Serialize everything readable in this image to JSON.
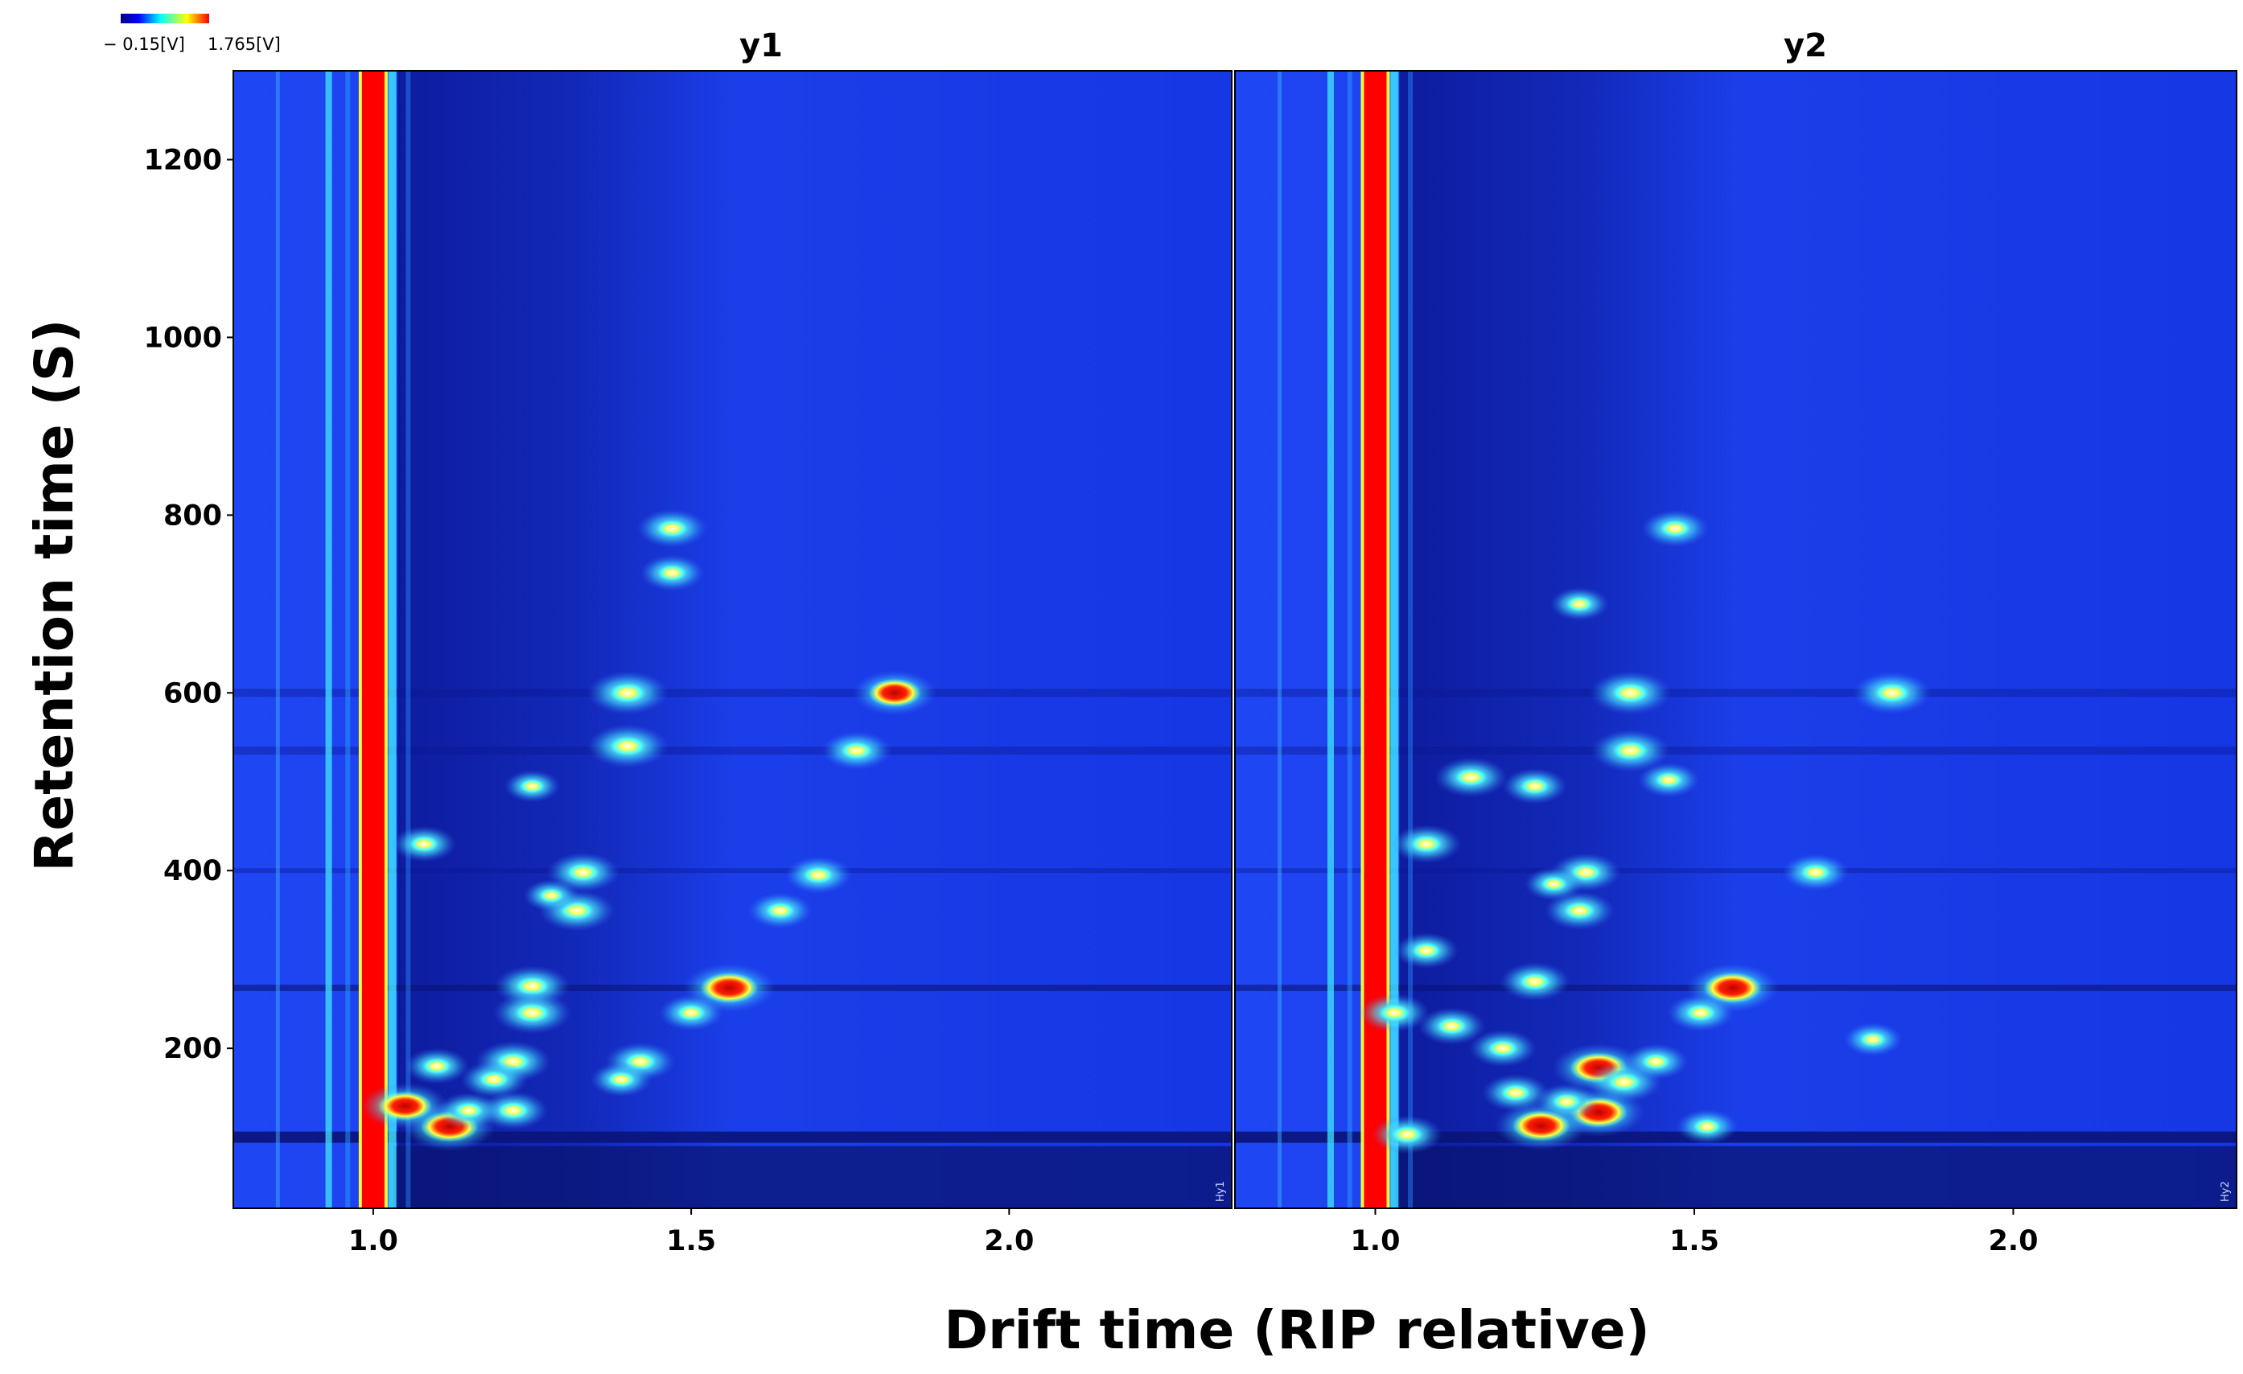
{
  "colorbar": {
    "min_label": "− 0.15[V]",
    "max_label": "1.765[V]",
    "colors": [
      "#000080",
      "#0000ff",
      "#00ffff",
      "#ffff00",
      "#ff0000"
    ]
  },
  "colors": {
    "background": "#1a3af0",
    "dark_band": "#0d1a9a",
    "rip": "#ff0000"
  },
  "chart_data": [
    {
      "type": "heatmap",
      "title": "y1",
      "xlabel": "Drift time (RIP relative)",
      "ylabel": "Retention time (S)",
      "xlim": [
        0.78,
        2.35
      ],
      "ylim": [
        20,
        1300
      ],
      "xticks": [
        1.0,
        1.5,
        2.0
      ],
      "xtick_labels": [
        "1.0",
        "1.5",
        "2.0"
      ],
      "yticks": [
        200,
        400,
        600,
        800,
        1000,
        1200
      ],
      "ytick_labels": [
        "200",
        "400",
        "600",
        "800",
        "1000",
        "1200"
      ],
      "file_tag": "Hy1",
      "rip_position": 1.0,
      "peaks": [
        {
          "x": 1.47,
          "y": 785,
          "i": 0.6
        },
        {
          "x": 1.47,
          "y": 735,
          "i": 0.5
        },
        {
          "x": 1.4,
          "y": 600,
          "i": 0.8
        },
        {
          "x": 1.4,
          "y": 540,
          "i": 0.8
        },
        {
          "x": 1.82,
          "y": 600,
          "i": 0.85
        },
        {
          "x": 1.76,
          "y": 535,
          "i": 0.6
        },
        {
          "x": 1.7,
          "y": 395,
          "i": 0.55
        },
        {
          "x": 1.64,
          "y": 355,
          "i": 0.5
        },
        {
          "x": 1.56,
          "y": 268,
          "i": 1.0
        },
        {
          "x": 1.5,
          "y": 240,
          "i": 0.5
        },
        {
          "x": 1.42,
          "y": 185,
          "i": 0.6
        },
        {
          "x": 1.39,
          "y": 165,
          "i": 0.45
        },
        {
          "x": 1.33,
          "y": 398,
          "i": 0.65
        },
        {
          "x": 1.32,
          "y": 355,
          "i": 0.7
        },
        {
          "x": 1.25,
          "y": 270,
          "i": 0.7
        },
        {
          "x": 1.25,
          "y": 240,
          "i": 0.75
        },
        {
          "x": 1.22,
          "y": 185,
          "i": 0.7
        },
        {
          "x": 1.19,
          "y": 165,
          "i": 0.55
        },
        {
          "x": 1.22,
          "y": 130,
          "i": 0.6
        },
        {
          "x": 1.12,
          "y": 112,
          "i": 1.0
        },
        {
          "x": 1.05,
          "y": 135,
          "i": 0.9
        },
        {
          "x": 1.08,
          "y": 430,
          "i": 0.5
        },
        {
          "x": 1.1,
          "y": 180,
          "i": 0.5
        },
        {
          "x": 1.15,
          "y": 130,
          "i": 0.5
        },
        {
          "x": 1.25,
          "y": 495,
          "i": 0.35
        },
        {
          "x": 1.28,
          "y": 372,
          "i": 0.35
        }
      ]
    },
    {
      "type": "heatmap",
      "title": "y2",
      "xlabel": "Drift time (RIP relative)",
      "ylabel": "Retention time (S)",
      "xlim": [
        0.78,
        2.35
      ],
      "ylim": [
        20,
        1300
      ],
      "xticks": [
        1.0,
        1.5,
        2.0
      ],
      "xtick_labels": [
        "1.0",
        "1.5",
        "2.0"
      ],
      "yticks": [
        200,
        400,
        600,
        800,
        1000,
        1200
      ],
      "ytick_labels": [
        "200",
        "400",
        "600",
        "800",
        "1000",
        "1200"
      ],
      "file_tag": "Hy2",
      "rip_position": 1.0,
      "peaks": [
        {
          "x": 1.47,
          "y": 785,
          "i": 0.55
        },
        {
          "x": 1.32,
          "y": 700,
          "i": 0.4
        },
        {
          "x": 1.4,
          "y": 600,
          "i": 0.8
        },
        {
          "x": 1.4,
          "y": 535,
          "i": 0.75
        },
        {
          "x": 1.81,
          "y": 600,
          "i": 0.75
        },
        {
          "x": 1.15,
          "y": 505,
          "i": 0.65
        },
        {
          "x": 1.25,
          "y": 495,
          "i": 0.5
        },
        {
          "x": 1.46,
          "y": 502,
          "i": 0.45
        },
        {
          "x": 1.08,
          "y": 430,
          "i": 0.6
        },
        {
          "x": 1.33,
          "y": 398,
          "i": 0.6
        },
        {
          "x": 1.32,
          "y": 355,
          "i": 0.6
        },
        {
          "x": 1.69,
          "y": 398,
          "i": 0.55
        },
        {
          "x": 1.56,
          "y": 268,
          "i": 1.0
        },
        {
          "x": 1.25,
          "y": 275,
          "i": 0.6
        },
        {
          "x": 1.35,
          "y": 178,
          "i": 1.0
        },
        {
          "x": 1.39,
          "y": 162,
          "i": 0.7
        },
        {
          "x": 1.35,
          "y": 128,
          "i": 1.0
        },
        {
          "x": 1.26,
          "y": 113,
          "i": 1.0
        },
        {
          "x": 1.05,
          "y": 103,
          "i": 0.6
        },
        {
          "x": 1.51,
          "y": 240,
          "i": 0.55
        },
        {
          "x": 1.03,
          "y": 240,
          "i": 0.6
        },
        {
          "x": 1.12,
          "y": 225,
          "i": 0.55
        },
        {
          "x": 1.08,
          "y": 310,
          "i": 0.5
        },
        {
          "x": 1.2,
          "y": 200,
          "i": 0.55
        },
        {
          "x": 1.44,
          "y": 185,
          "i": 0.5
        },
        {
          "x": 1.22,
          "y": 150,
          "i": 0.55
        },
        {
          "x": 1.3,
          "y": 140,
          "i": 0.5
        },
        {
          "x": 1.52,
          "y": 112,
          "i": 0.45
        },
        {
          "x": 1.78,
          "y": 210,
          "i": 0.4
        },
        {
          "x": 1.28,
          "y": 385,
          "i": 0.4
        }
      ]
    }
  ]
}
